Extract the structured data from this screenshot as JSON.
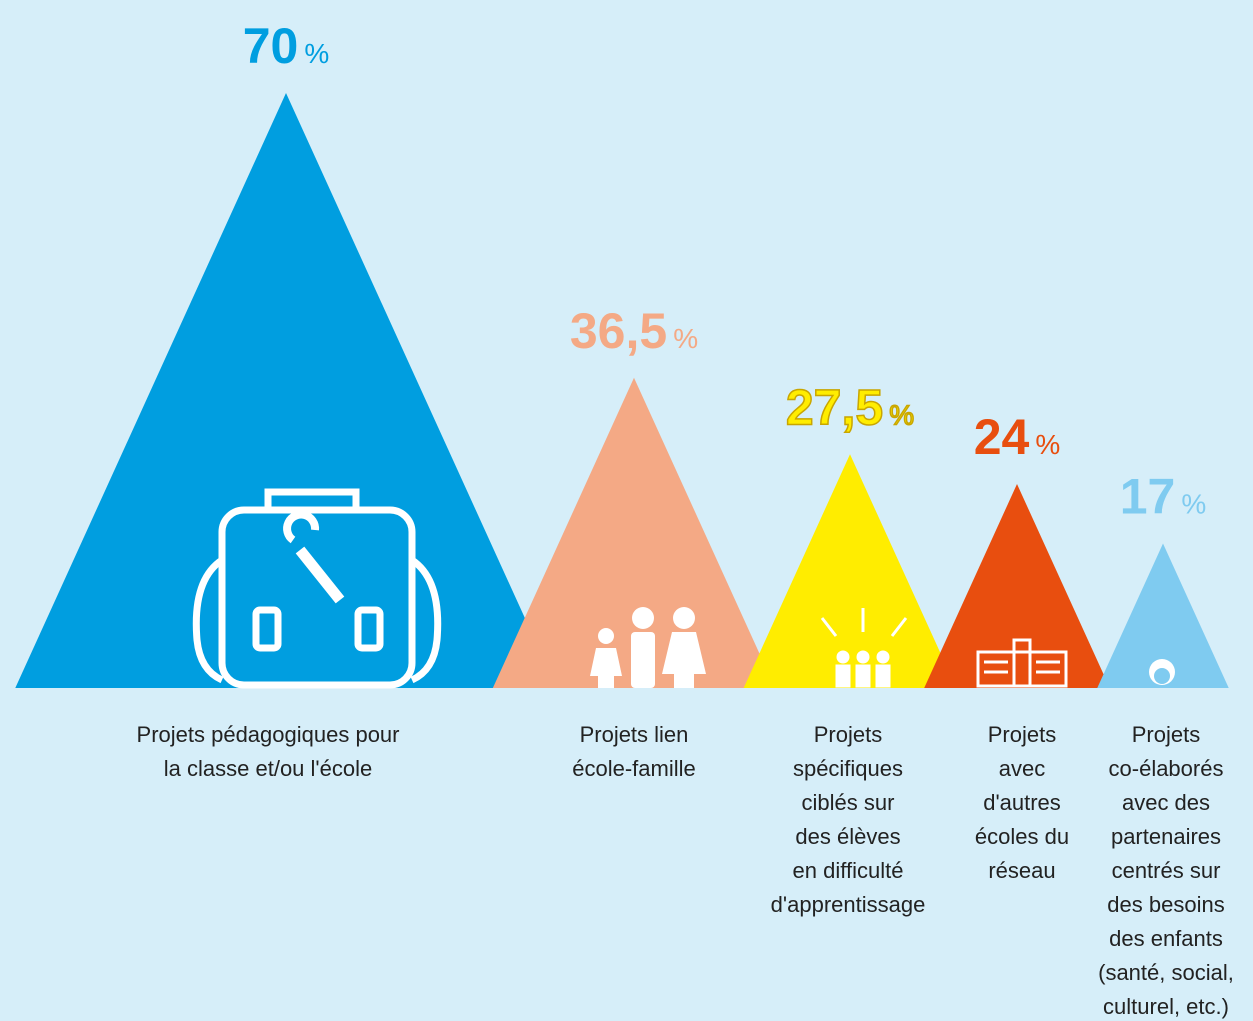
{
  "chart_data": {
    "type": "triangle",
    "categories": [
      [
        "Projets pédagogiques pour",
        "la classe et/ou l'école"
      ],
      [
        "Projets lien",
        "école-famille"
      ],
      [
        "Projets",
        "spécifiques",
        "ciblés sur",
        "des élèves",
        "en difficulté",
        "d'apprentissage"
      ],
      [
        "Projets",
        "avec",
        "d'autres",
        "écoles du",
        "réseau"
      ],
      [
        "Projets",
        "co-élaborés",
        "avec des",
        "partenaires",
        "centrés sur",
        "des besoins",
        "des enfants",
        "(santé, social,",
        "culturel, etc.)"
      ]
    ],
    "values": [
      70,
      36.5,
      27.5,
      24,
      17
    ],
    "value_labels": [
      "70",
      "36,5",
      "27,5",
      "24",
      "17"
    ],
    "unit": "%",
    "colors": [
      "#009ee0",
      "#f4a985",
      "#ffed00",
      "#e84e0f",
      "#7fcbf0"
    ]
  }
}
